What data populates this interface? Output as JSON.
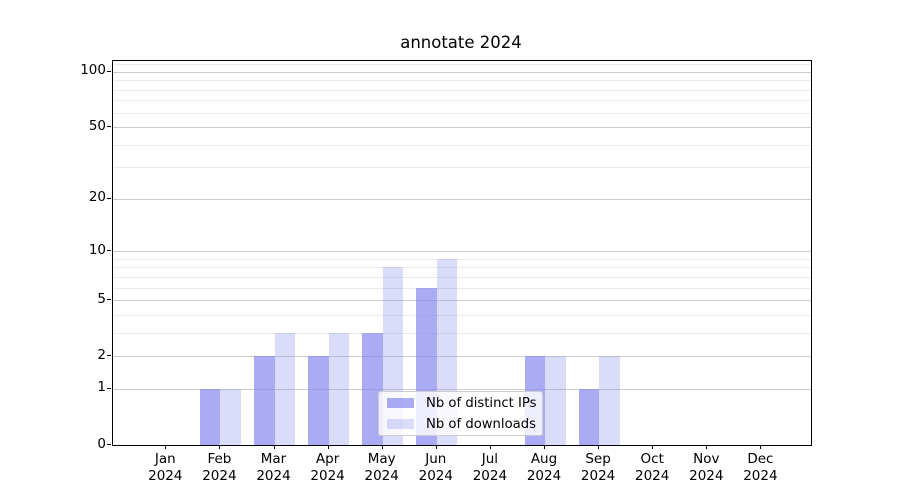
{
  "chart_data": {
    "type": "bar",
    "title": "annotate 2024",
    "categories": [
      "Jan 2024",
      "Feb 2024",
      "Mar 2024",
      "Apr 2024",
      "May 2024",
      "Jun 2024",
      "Jul 2024",
      "Aug 2024",
      "Sep 2024",
      "Oct 2024",
      "Nov 2024",
      "Dec 2024"
    ],
    "series": [
      {
        "name": "Nb of distinct IPs",
        "color": "#8888ee",
        "opacity": 0.7,
        "values": [
          0,
          1,
          2,
          2,
          3,
          6,
          0,
          2,
          1,
          0,
          0,
          0
        ]
      },
      {
        "name": "Nb of downloads",
        "color": "#8888ee",
        "opacity": 0.3,
        "values": [
          0,
          1,
          3,
          3,
          8,
          9,
          0,
          2,
          2,
          0,
          0,
          0
        ]
      }
    ],
    "y_axis": {
      "scale": "log1p",
      "tick_labels": [
        0,
        1,
        2,
        5,
        10,
        20,
        50,
        100
      ],
      "minor_gridlines": [
        3,
        4,
        6,
        7,
        8,
        9,
        30,
        40,
        60,
        70,
        80,
        90,
        110
      ],
      "range": [
        0,
        114
      ]
    },
    "x_axis": {
      "tick_label_year": "2024"
    },
    "grid": "both",
    "legend_position": "lower center",
    "colors": {
      "bar_base": "#8888ee",
      "major_grid": "#cccccc",
      "minor_grid": "#e9e9e9",
      "spine": "#000000",
      "background": "#ffffff"
    }
  }
}
